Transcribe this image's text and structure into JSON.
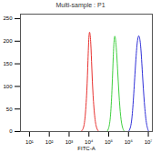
{
  "chart_data": {
    "type": "line",
    "title": "Multi-sample : P1",
    "x_label": "FITC-A",
    "log": "x",
    "xlim": [
      3.5,
      16000000
    ],
    "xticks": [
      {
        "value": 10,
        "label": "10¹"
      },
      {
        "value": 100,
        "label": "10²"
      },
      {
        "value": 1000,
        "label": "10³"
      },
      {
        "value": 10000,
        "label": "10⁴"
      },
      {
        "value": 100000,
        "label": "10⁵"
      },
      {
        "value": 1000000,
        "label": "10⁶"
      },
      {
        "value": 10000000,
        "label": "10⁷"
      }
    ],
    "ylim": [
      0,
      260
    ],
    "yticks": [
      0,
      50,
      100,
      150,
      200,
      250
    ],
    "series": [
      {
        "color": "#e8312f",
        "x": [
          4000,
          5000,
          6300,
          8000,
          9000,
          10000,
          11000,
          12500,
          14000,
          16000,
          20000,
          25000,
          32000
        ],
        "values": [
          0,
          4,
          20,
          90,
          160,
          215,
          225,
          200,
          140,
          80,
          25,
          5,
          0
        ]
      },
      {
        "color": "#3fcf3f",
        "x": [
          80000,
          100000,
          125000,
          150000,
          170000,
          190000,
          210000,
          240000,
          280000,
          330000,
          400000,
          500000,
          630000
        ],
        "values": [
          0,
          5,
          30,
          100,
          170,
          210,
          214,
          190,
          140,
          80,
          30,
          6,
          0
        ]
      },
      {
        "color": "#2f2fd8",
        "x": [
          1000000,
          1300000,
          1600000,
          2000000,
          2500000,
          3000000,
          3500000,
          4200000,
          5000000,
          6300000,
          8000000,
          10000000
        ],
        "values": [
          0,
          8,
          40,
          110,
          180,
          212,
          214,
          190,
          130,
          60,
          15,
          2
        ]
      }
    ]
  }
}
